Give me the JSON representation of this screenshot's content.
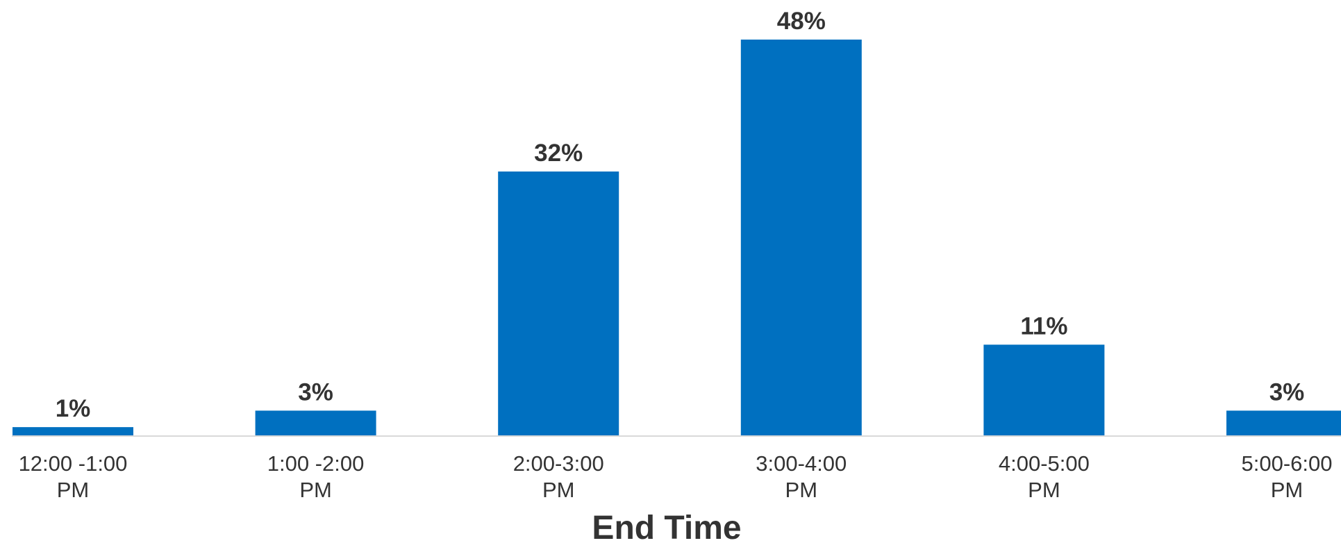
{
  "chart_data": {
    "type": "bar",
    "categories": [
      "12:00 -1:00 PM",
      "1:00 -2:00 PM",
      "2:00-3:00 PM",
      "3:00-4:00 PM",
      "4:00-5:00 PM",
      "5:00-6:00 PM"
    ],
    "category_lines": [
      [
        "12:00 -1:00",
        "PM"
      ],
      [
        "1:00 -2:00",
        "PM"
      ],
      [
        "2:00-3:00",
        "PM"
      ],
      [
        "3:00-4:00",
        "PM"
      ],
      [
        "4:00-5:00",
        "PM"
      ],
      [
        "5:00-6:00",
        "PM"
      ]
    ],
    "values": [
      1,
      3,
      32,
      48,
      11,
      3
    ],
    "value_labels": [
      "1%",
      "3%",
      "32%",
      "48%",
      "11%",
      "3%"
    ],
    "title": "",
    "xlabel": "End Time",
    "ylabel": "",
    "ylim": [
      0,
      48
    ],
    "grid": false,
    "bar_color": "#0070C0",
    "axis_color": "#D9D9D9"
  }
}
